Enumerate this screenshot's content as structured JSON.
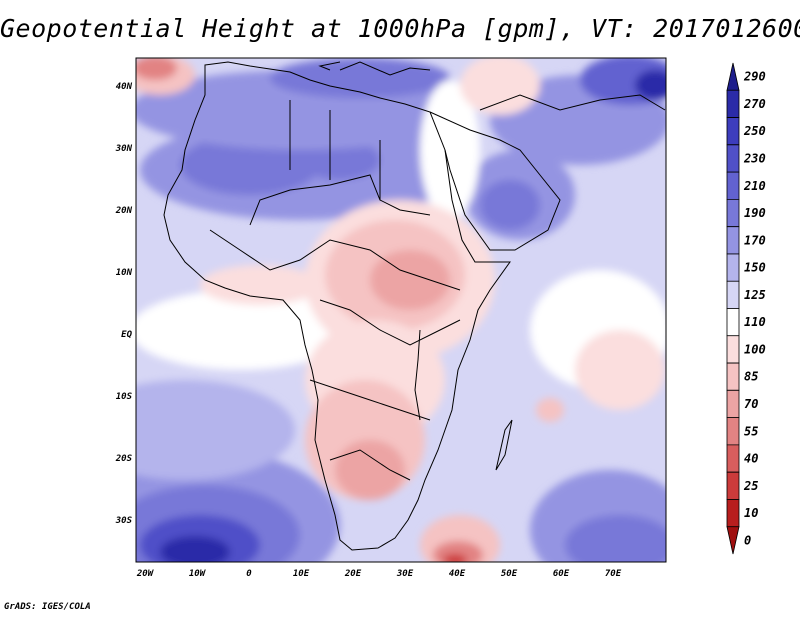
{
  "title": "Geopotential Height at 1000hPa [gpm], VT: 2017012600",
  "footer": "GrADS: IGES/COLA",
  "map": {
    "variable": "Geopotential Height",
    "level": "1000hPa",
    "units": "gpm",
    "valid_time": "2017012600",
    "lat_labels": [
      "40N",
      "30N",
      "20N",
      "10N",
      "EQ",
      "10S",
      "20S",
      "30S"
    ],
    "lon_labels": [
      "20W",
      "10W",
      "0",
      "10E",
      "20E",
      "30E",
      "40E",
      "50E",
      "60E",
      "70E"
    ]
  },
  "colorbar": {
    "levels": [
      "290",
      "270",
      "250",
      "230",
      "210",
      "190",
      "170",
      "150",
      "125",
      "110",
      "100",
      "85",
      "70",
      "55",
      "40",
      "25",
      "10",
      "0"
    ],
    "colors": [
      "#1e1e8c",
      "#2b2ba8",
      "#3d3dbd",
      "#5050c8",
      "#6262d0",
      "#7878d8",
      "#9494e2",
      "#b4b4ec",
      "#d6d6f5",
      "#ffffff",
      "#fbdede",
      "#f5c3c3",
      "#eca4a4",
      "#e28383",
      "#d85e5e",
      "#cc3b3b",
      "#b81e1e",
      "#a00f0f"
    ]
  }
}
